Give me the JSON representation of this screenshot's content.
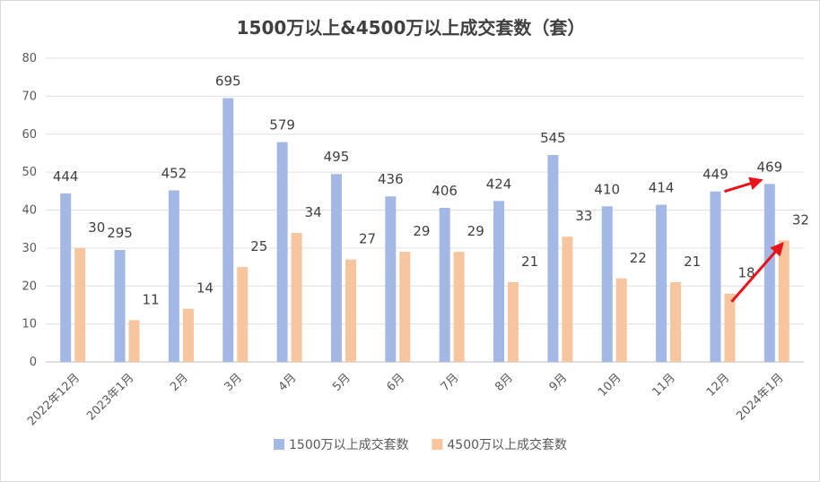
{
  "chart_data": {
    "type": "bar",
    "title": "1500万以上&4500万以上成交套数（套）",
    "categories": [
      "2022年12月",
      "2023年1月",
      "2月",
      "3月",
      "4月",
      "5月",
      "6月",
      "7月",
      "8月",
      "9月",
      "10月",
      "11月",
      "12月",
      "2024年1月"
    ],
    "series": [
      {
        "name": "1500万以上成交套数",
        "color": "#a4b8e6",
        "values": [
          44.4,
          29.5,
          45.2,
          69.5,
          57.9,
          49.5,
          43.6,
          40.6,
          42.4,
          54.5,
          41.0,
          41.4,
          44.9,
          46.9
        ],
        "labels": [
          "444",
          "295",
          "452",
          "695",
          "579",
          "495",
          "436",
          "406",
          "424",
          "545",
          "410",
          "414",
          "449",
          "469"
        ]
      },
      {
        "name": "4500万以上成交套数",
        "color": "#f7c59e",
        "values": [
          30,
          11,
          14,
          25,
          34,
          27,
          29,
          29,
          21,
          33,
          22,
          21,
          18,
          32
        ],
        "labels": [
          "30",
          "11",
          "14",
          "25",
          "34",
          "27",
          "29",
          "29",
          "21",
          "33",
          "22",
          "21",
          "18",
          "32"
        ]
      }
    ],
    "ylim": [
      0,
      80
    ],
    "yticks": [
      0,
      10,
      20,
      30,
      40,
      50,
      60,
      70,
      80
    ],
    "grid": true,
    "legend_position": "bottom",
    "annotation_color": "#e8131b"
  }
}
